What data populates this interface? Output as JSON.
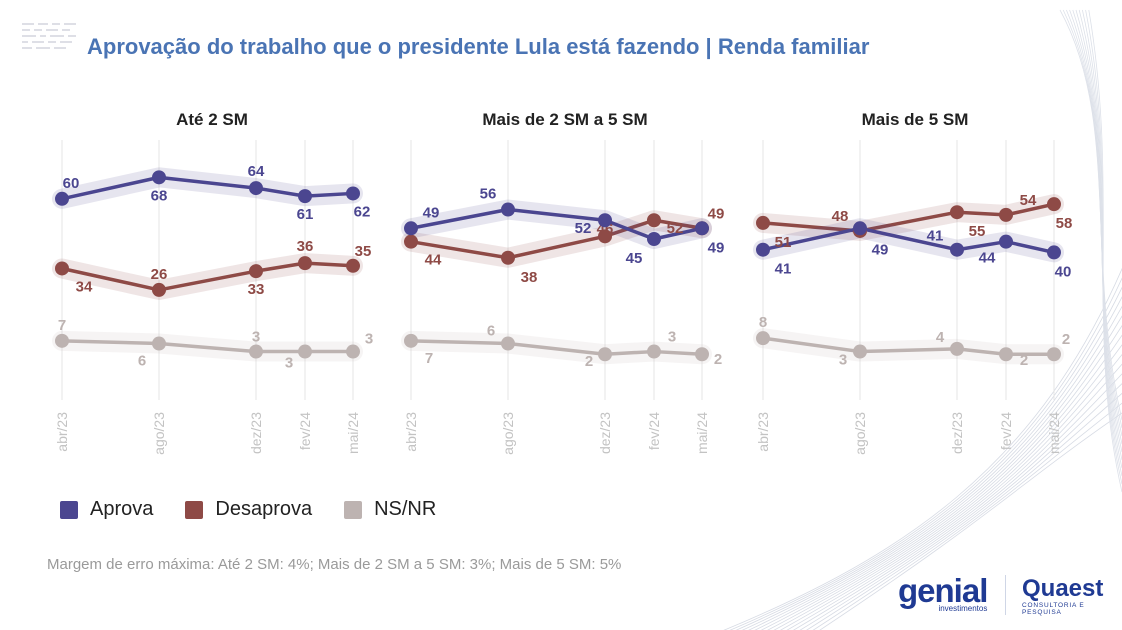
{
  "title": "Aprovação do trabalho que o presidente Lula está fazendo | Renda familiar",
  "note": "Margem de erro máxima: Até 2 SM: 4%; Mais de 2 SM a 5 SM: 3%; Mais de 5 SM: 5%",
  "colors": {
    "Aprova": "#4b4690",
    "Desaprova": "#8e4a46",
    "NS/NR": "#bdb3b1",
    "title": "#4a74b4"
  },
  "legend": [
    "Aprova",
    "Desaprova",
    "NS/NR"
  ],
  "logos": {
    "genial": "genial",
    "genial_sub": "investimentos",
    "quaest": "Quaest",
    "quaest_sub": "CONSULTORIA E PESQUISA"
  },
  "chart_data": [
    {
      "type": "line",
      "title": "Até 2 SM",
      "x": [
        "abr/23",
        "ago/23",
        "dez/23",
        "fev/24",
        "mai/24"
      ],
      "series": [
        {
          "name": "Aprova",
          "values": [
            60,
            68,
            64,
            61,
            62
          ]
        },
        {
          "name": "Desaprova",
          "values": [
            34,
            26,
            33,
            36,
            35
          ]
        },
        {
          "name": "NS/NR",
          "values": [
            7,
            6,
            3,
            3,
            3
          ]
        }
      ]
    },
    {
      "type": "line",
      "title": "Mais de 2 SM a 5 SM",
      "x": [
        "abr/23",
        "ago/23",
        "dez/23",
        "fev/24",
        "mai/24"
      ],
      "series": [
        {
          "name": "Aprova",
          "values": [
            49,
            56,
            52,
            45,
            49
          ]
        },
        {
          "name": "Desaprova",
          "values": [
            44,
            38,
            46,
            52,
            49
          ]
        },
        {
          "name": "NS/NR",
          "values": [
            7,
            6,
            2,
            3,
            2
          ]
        }
      ]
    },
    {
      "type": "line",
      "title": "Mais de 5 SM",
      "x": [
        "abr/23",
        "ago/23",
        "dez/23",
        "fev/24",
        "mai/24"
      ],
      "series": [
        {
          "name": "Aprova",
          "values": [
            41,
            49,
            41,
            44,
            40
          ]
        },
        {
          "name": "Desaprova",
          "values": [
            51,
            48,
            55,
            54,
            58
          ]
        },
        {
          "name": "NS/NR",
          "values": [
            8,
            3,
            4,
            2,
            2
          ]
        }
      ]
    }
  ]
}
